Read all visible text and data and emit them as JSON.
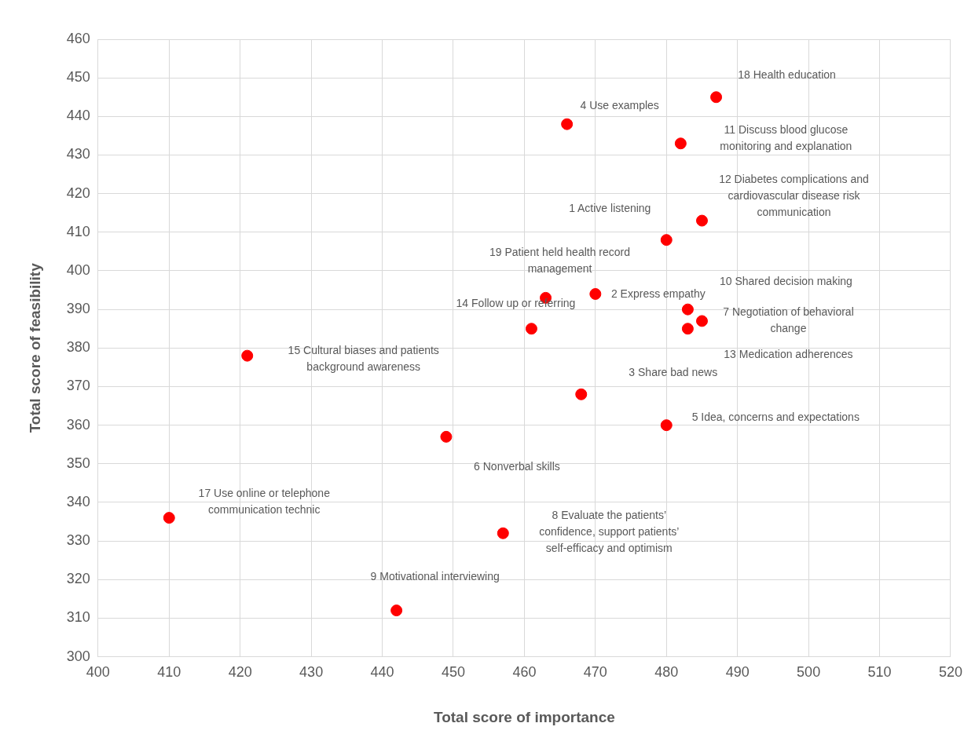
{
  "chart_data": {
    "type": "scatter",
    "xlabel": "Total score of importance",
    "ylabel": "Total score of feasibility",
    "x": [
      487,
      466,
      482,
      485,
      480,
      463,
      470,
      483,
      485,
      483,
      461,
      421,
      468,
      480,
      449,
      410,
      457,
      442
    ],
    "series": [
      {
        "color": "#ff0000",
        "values": [
          445,
          438,
          433,
          413,
          408,
          393,
          394,
          390,
          387,
          385,
          385,
          378,
          368,
          360,
          357,
          336,
          332,
          312
        ]
      }
    ],
    "xlim": [
      400,
      520
    ],
    "xticks": [
      400,
      410,
      420,
      430,
      440,
      450,
      460,
      470,
      480,
      490,
      500,
      510,
      520
    ],
    "ylim": [
      300,
      460
    ],
    "yticks": [
      300,
      310,
      320,
      330,
      340,
      350,
      360,
      370,
      380,
      390,
      400,
      410,
      420,
      430,
      440,
      450,
      460
    ],
    "grid": true,
    "legend": false,
    "marker": "circle",
    "annotations": [
      {
        "text": "18 Health education",
        "x": 487,
        "y": 445
      },
      {
        "text": "4 Use examples",
        "x": 466,
        "y": 438
      },
      "11 Discuss blood glucose monitoring and explanation",
      {
        "text": "12 Diabetes complications and cardiovascular disease risk communication",
        "x": 485,
        "y": 413
      },
      {
        "text": "1 Active listening",
        "x": 480,
        "y": 408
      },
      {
        "text": "19 Patient held health record management",
        "x": 463,
        "y": 393
      },
      {
        "text": "2 Express empathy",
        "x": 470,
        "y": 394
      },
      "10 Shared decision making",
      {
        "text": "7 Negotiation of behavioral change",
        "x": 485,
        "y": 387
      },
      "13 Medication adherences",
      {
        "text": "14 Follow up or referring",
        "x": 461,
        "y": 385
      },
      "15 Cultural biases and patients background awareness",
      "3 Share bad news",
      {
        "text": "5 Idea, concerns and expectations",
        "x": 480,
        "y": 360
      },
      "6 Nonverbal skills",
      {
        "text": "17 Use online or telephone communication technic",
        "x": 410,
        "y": 336
      },
      "8 Evaluate the patients’ confidence, support patients’ self-efficacy and optimism",
      {
        "text": "9 Motivational interviewing",
        "x": 442,
        "y": 312
      }
    ]
  }
}
